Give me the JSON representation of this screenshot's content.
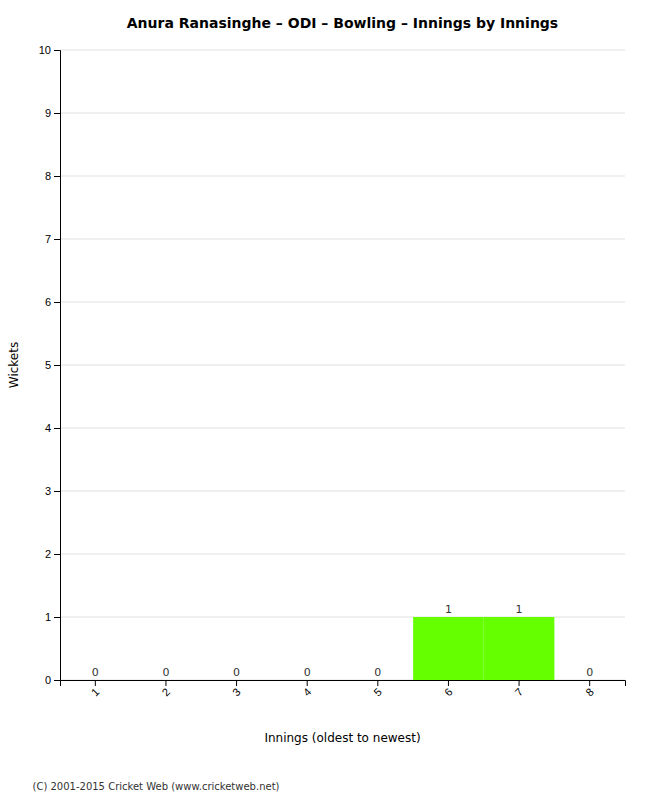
{
  "chart_data": {
    "type": "bar",
    "title": "Anura Ranasinghe – ODI – Bowling – Innings by Innings",
    "x_label": "Innings (oldest to newest)",
    "y_label": "Wickets",
    "categories": [
      "1",
      "2",
      "3",
      "4",
      "5",
      "6",
      "7",
      "8"
    ],
    "values": [
      0,
      0,
      0,
      0,
      0,
      1,
      1,
      0
    ],
    "color": "#66ff00",
    "ylim": [
      0,
      10
    ],
    "yticks": [
      0,
      1,
      2,
      3,
      4,
      5,
      6,
      7,
      8,
      9,
      10
    ],
    "grid": true,
    "data_labels": true,
    "annotations": [
      "(C) 2001-2015 Cricket Web (www.cricketweb.net)"
    ]
  }
}
